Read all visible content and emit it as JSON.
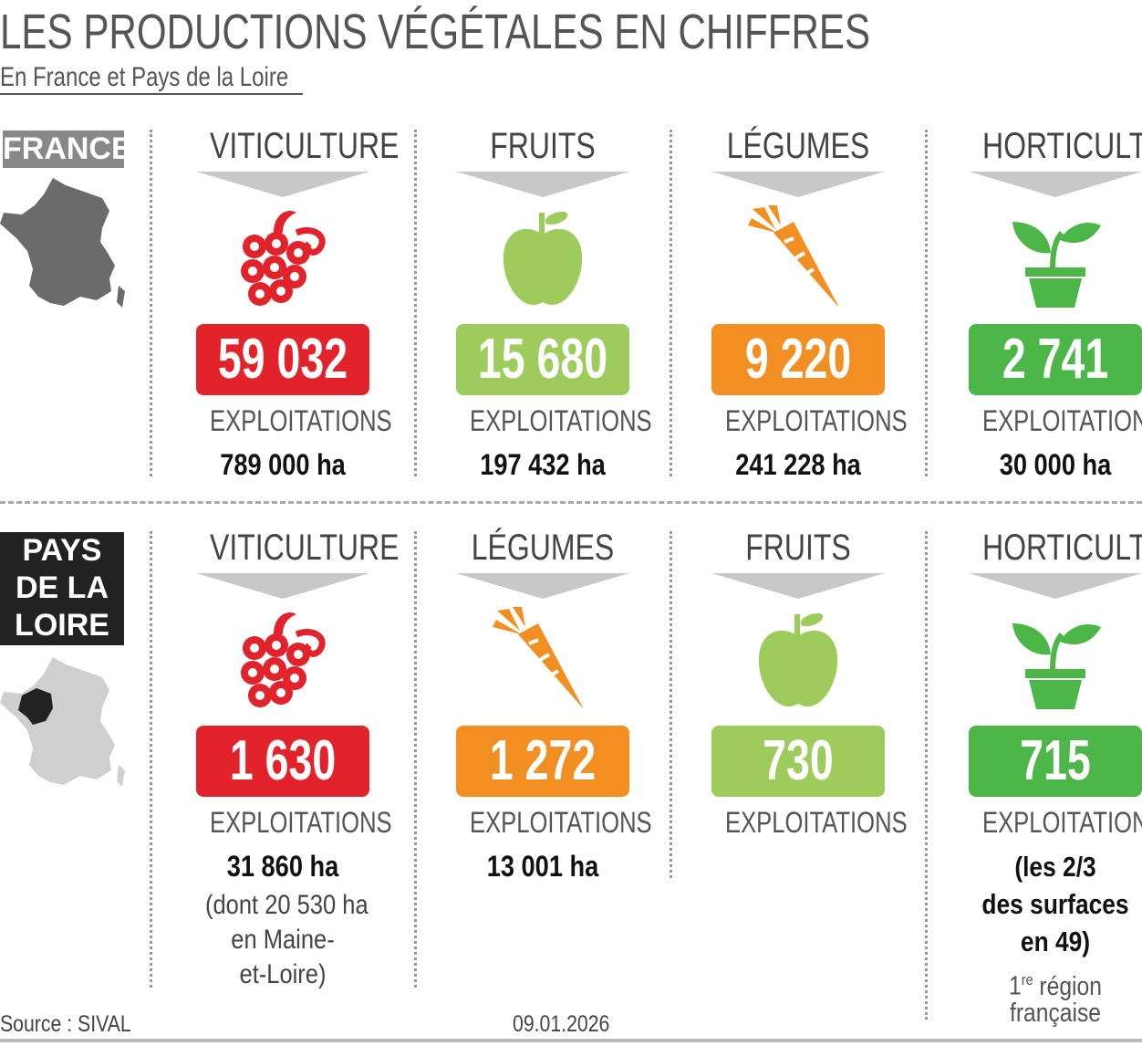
{
  "header": {
    "title": "LES PRODUCTIONS VÉGÉTALES EN CHIFFRES",
    "subtitle": "En France et Pays de la Loire"
  },
  "sections": [
    {
      "label": [
        "FRANCE"
      ],
      "items": [
        {
          "category": "VITICULTURE",
          "count": "59 032",
          "unit": "EXPLOITATIONS",
          "area": "789 000 ha"
        },
        {
          "category": "FRUITS",
          "count": "15 680",
          "unit": "EXPLOITATIONS",
          "area": "197 432 ha"
        },
        {
          "category": "LÉGUMES",
          "count": "9 220",
          "unit": "EXPLOITATIONS",
          "area": "241 228 ha"
        },
        {
          "category": "HORTICULTURE",
          "count": "2 741",
          "unit": "EXPLOITATIONS",
          "area": "30 000 ha"
        }
      ]
    },
    {
      "label": [
        "PAYS",
        "DE LA",
        "LOIRE"
      ],
      "items": [
        {
          "category": "VITICULTURE",
          "count": "1 630",
          "unit": "EXPLOITATIONS",
          "area": "31 860 ha",
          "note": [
            "(dont 20 530 ha",
            "en Maine-",
            "et-Loire)"
          ]
        },
        {
          "category": "LÉGUMES",
          "count": "1 272",
          "unit": "EXPLOITATIONS",
          "area": "13 001 ha"
        },
        {
          "category": "FRUITS",
          "count": "730",
          "unit": "EXPLOITATIONS"
        },
        {
          "category": "HORTICULTURE",
          "count": "715",
          "unit": "EXPLOITATIONS",
          "note": [
            "(les 2/3",
            "des surfaces",
            "en 49)"
          ],
          "rank": {
            "number": "1",
            "suffix": "re",
            "text": [
              "région",
              "française"
            ]
          }
        }
      ]
    }
  ],
  "footer": {
    "source": "Source : SIVAL",
    "date": "09.01.2026"
  }
}
